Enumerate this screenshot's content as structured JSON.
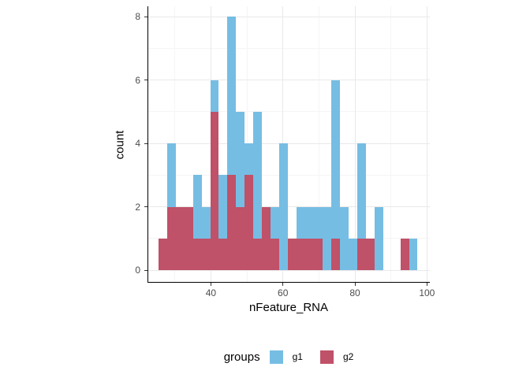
{
  "chart_data": {
    "type": "bar",
    "subtype": "overlaid-histogram",
    "note": "two histograms drawn with identity position; g2 (red) is drawn on top of g1 (blue); counts below are the visible bar tops read from the plot",
    "title": "",
    "xlabel": "nFeature_RNA",
    "ylabel": "count",
    "bin_start": 25.4,
    "bin_width": 2.4,
    "bin_left_edges": [
      25.4,
      27.8,
      30.2,
      32.6,
      35.0,
      37.4,
      39.8,
      42.2,
      44.6,
      47.0,
      49.4,
      51.8,
      54.2,
      56.6,
      59.0,
      61.4,
      63.8,
      66.2,
      68.6,
      71.0,
      73.4,
      75.8,
      78.2,
      80.6,
      83.0,
      85.4,
      87.8,
      90.2,
      92.6,
      95.0
    ],
    "series": [
      {
        "name": "g1",
        "color": "#76BDE4",
        "counts": [
          0,
          4,
          0,
          0,
          3,
          2,
          6,
          3,
          8,
          5,
          4,
          5,
          0,
          2,
          4,
          0,
          2,
          2,
          2,
          2,
          6,
          2,
          1,
          4,
          0,
          2,
          0,
          0,
          0,
          1
        ]
      },
      {
        "name": "g2",
        "color": "#BF5168",
        "counts": [
          1,
          2,
          2,
          2,
          1,
          1,
          5,
          1,
          3,
          2,
          3,
          1,
          2,
          1,
          0,
          1,
          1,
          1,
          1,
          0,
          1,
          0,
          0,
          1,
          1,
          0,
          0,
          0,
          1,
          0
        ]
      }
    ],
    "x_ticks": [
      40,
      60,
      80,
      100
    ],
    "x_minor_ticks": [
      30,
      50,
      70,
      90
    ],
    "y_ticks": [
      0,
      2,
      4,
      6,
      8
    ],
    "y_minor_ticks": [
      1,
      3,
      5,
      7
    ],
    "xlim": [
      22.6,
      100.8
    ],
    "ylim": [
      -0.37,
      8.33
    ],
    "grid": true,
    "legend_position": "bottom"
  },
  "axes": {
    "x_title": "nFeature_RNA",
    "y_title": "count",
    "x_tick_labels": [
      "40",
      "60",
      "80",
      "100"
    ],
    "y_tick_labels": [
      "0",
      "2",
      "4",
      "6",
      "8"
    ]
  },
  "legend": {
    "title": "groups",
    "items": [
      {
        "label": "g1",
        "color": "#76BDE4"
      },
      {
        "label": "g2",
        "color": "#BF5168"
      }
    ]
  },
  "colors": {
    "background": "#ffffff",
    "axis_line": "#000000",
    "tick_label": "#4d4d4d",
    "grid_major": "#e9e9e9",
    "grid_minor": "#f5f5f5"
  }
}
